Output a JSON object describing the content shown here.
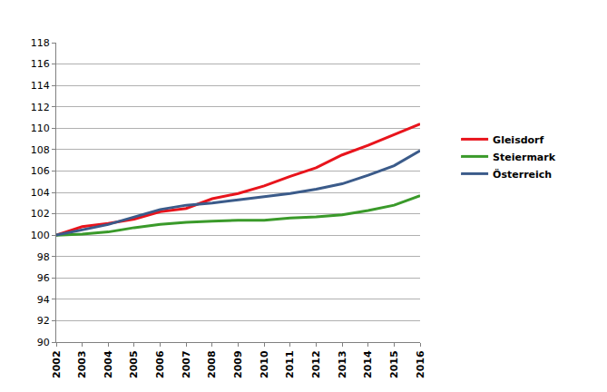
{
  "chart_data": {
    "type": "line",
    "x": [
      2002,
      2003,
      2004,
      2005,
      2006,
      2007,
      2008,
      2009,
      2010,
      2011,
      2012,
      2013,
      2014,
      2015,
      2016
    ],
    "series": [
      {
        "name": "Gleisdorf",
        "color": "#e8141c",
        "values": [
          100,
          100.8,
          101.1,
          101.5,
          102.2,
          102.5,
          103.4,
          103.9,
          104.6,
          105.5,
          106.3,
          107.5,
          108.4,
          109.4,
          110.4
        ]
      },
      {
        "name": "Steiermark",
        "color": "#3a9a2a",
        "values": [
          100,
          100.1,
          100.3,
          100.7,
          101.0,
          101.2,
          101.3,
          101.4,
          101.4,
          101.6,
          101.7,
          101.9,
          102.3,
          102.8,
          103.7
        ]
      },
      {
        "name": "Österreich",
        "color": "#3b5b8a",
        "values": [
          100,
          100.5,
          101.0,
          101.7,
          102.4,
          102.8,
          103.0,
          103.3,
          103.6,
          103.9,
          104.3,
          104.8,
          105.6,
          106.5,
          107.9
        ]
      }
    ],
    "xlim": [
      2002,
      2016
    ],
    "xticks": [
      2002,
      2003,
      2004,
      2005,
      2006,
      2007,
      2008,
      2009,
      2010,
      2011,
      2012,
      2013,
      2014,
      2015,
      2016
    ],
    "ylim": [
      90,
      118
    ],
    "yticks": [
      90,
      92,
      94,
      96,
      98,
      100,
      102,
      104,
      106,
      108,
      110,
      112,
      114,
      116,
      118
    ],
    "grid": true,
    "legend": "right"
  }
}
